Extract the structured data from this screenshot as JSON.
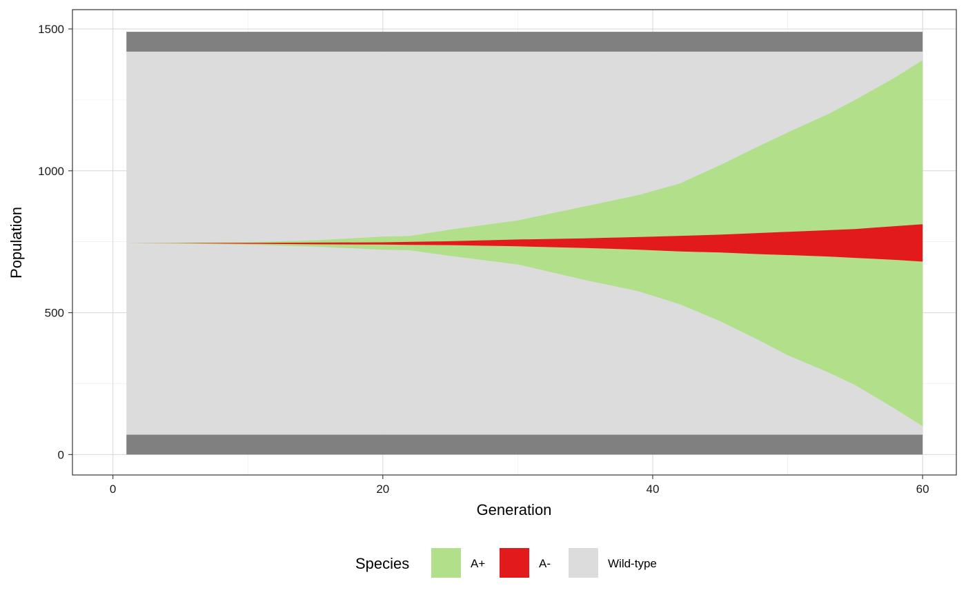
{
  "chart_data": {
    "type": "area",
    "xlabel": "Generation",
    "ylabel": "Population",
    "xlim": [
      -3,
      62.5
    ],
    "ylim": [
      -72,
      1568
    ],
    "x_ticks": [
      0,
      20,
      40,
      60
    ],
    "y_ticks": [
      0,
      500,
      1000,
      1500
    ],
    "grid": true,
    "legend": {
      "title": "Species",
      "position": "bottom"
    },
    "colors": {
      "a_plus": "#b2df8a",
      "a_minus": "#e31a1c",
      "wild_type": "#dcdcdc",
      "bar": "#808080"
    },
    "series": [
      {
        "name": "A+",
        "key": "a_plus"
      },
      {
        "name": "A-",
        "key": "a_minus"
      },
      {
        "name": "Wild-type",
        "key": "wild_type"
      }
    ],
    "x_range": [
      1,
      60
    ],
    "bars": [
      {
        "y0": 0,
        "y1": 70
      },
      {
        "y0": 1420,
        "y1": 1490
      }
    ],
    "boundaries": [
      {
        "x": 1,
        "b0": 70,
        "b1": 745,
        "b2": 745,
        "b3": 745,
        "b4": 1420
      },
      {
        "x": 5,
        "b0": 70,
        "b1": 743,
        "b2": 745,
        "b3": 746,
        "b4": 1420
      },
      {
        "x": 10,
        "b0": 70,
        "b1": 740,
        "b2": 743,
        "b3": 748,
        "b4": 1420
      },
      {
        "x": 15,
        "b0": 70,
        "b1": 733,
        "b2": 741,
        "b3": 755,
        "b4": 1420
      },
      {
        "x": 20,
        "b0": 70,
        "b1": 722,
        "b2": 740,
        "b3": 768,
        "b4": 1420
      },
      {
        "x": 22,
        "b0": 70,
        "b1": 720,
        "b2": 739,
        "b3": 770,
        "b4": 1420
      },
      {
        "x": 25,
        "b0": 70,
        "b1": 700,
        "b2": 738,
        "b3": 793,
        "b4": 1420
      },
      {
        "x": 30,
        "b0": 70,
        "b1": 670,
        "b2": 734,
        "b3": 825,
        "b4": 1420
      },
      {
        "x": 35,
        "b0": 70,
        "b1": 615,
        "b2": 728,
        "b3": 875,
        "b4": 1420
      },
      {
        "x": 39,
        "b0": 70,
        "b1": 575,
        "b2": 722,
        "b3": 915,
        "b4": 1420
      },
      {
        "x": 42,
        "b0": 70,
        "b1": 530,
        "b2": 716,
        "b3": 955,
        "b4": 1420
      },
      {
        "x": 45,
        "b0": 70,
        "b1": 470,
        "b2": 712,
        "b3": 1020,
        "b4": 1420
      },
      {
        "x": 48,
        "b0": 70,
        "b1": 400,
        "b2": 706,
        "b3": 1090,
        "b4": 1420
      },
      {
        "x": 50,
        "b0": 70,
        "b1": 350,
        "b2": 703,
        "b3": 1135,
        "b4": 1420
      },
      {
        "x": 53,
        "b0": 70,
        "b1": 290,
        "b2": 698,
        "b3": 1200,
        "b4": 1420
      },
      {
        "x": 55,
        "b0": 70,
        "b1": 245,
        "b2": 693,
        "b3": 1250,
        "b4": 1420
      },
      {
        "x": 58,
        "b0": 70,
        "b1": 160,
        "b2": 686,
        "b3": 1330,
        "b4": 1420
      },
      {
        "x": 60,
        "b0": 70,
        "b1": 100,
        "b2": 680,
        "b3": 1390,
        "b4": 1420
      }
    ],
    "a_minus_top": [
      {
        "x": 1,
        "y": 745
      },
      {
        "x": 10,
        "y": 746
      },
      {
        "x": 15,
        "y": 747
      },
      {
        "x": 20,
        "y": 748
      },
      {
        "x": 25,
        "y": 752
      },
      {
        "x": 30,
        "y": 758
      },
      {
        "x": 35,
        "y": 762
      },
      {
        "x": 40,
        "y": 768
      },
      {
        "x": 45,
        "y": 775
      },
      {
        "x": 50,
        "y": 785
      },
      {
        "x": 55,
        "y": 795
      },
      {
        "x": 60,
        "y": 812
      }
    ]
  }
}
